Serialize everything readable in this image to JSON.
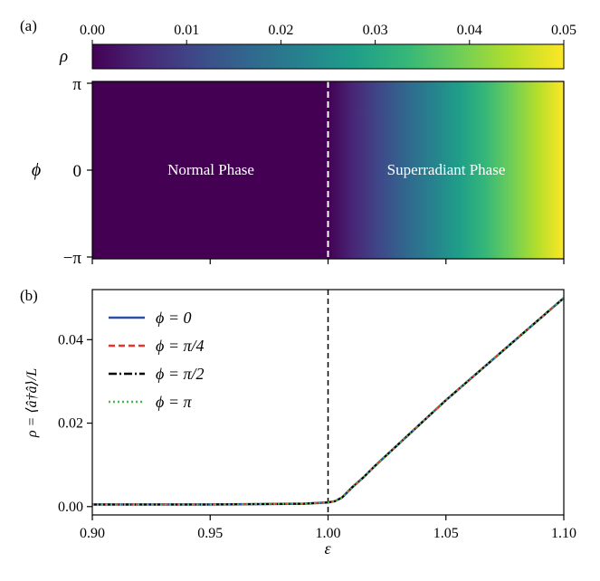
{
  "figure": {
    "panel_a_label": "(a)",
    "panel_b_label": "(b)"
  },
  "chart_data": [
    {
      "type": "heatmap",
      "panel": "(a)",
      "colorbar": {
        "label": "ρ",
        "range": [
          0.0,
          0.05
        ],
        "ticks": [
          "0.00",
          "0.01",
          "0.02",
          "0.03",
          "0.04",
          "0.05"
        ],
        "colormap": "viridis",
        "colors": [
          "#440154",
          "#482878",
          "#3e4a89",
          "#31688e",
          "#26828e",
          "#1f9e89",
          "#35b779",
          "#6ece58",
          "#b5de2b",
          "#fde725"
        ]
      },
      "xlim": [
        0.9,
        1.1
      ],
      "ylabel": "ϕ",
      "yticks": [
        "π",
        "0",
        "−π"
      ],
      "threshold_x": 1.0,
      "annotations": [
        "Normal Phase",
        "Superradiant Phase"
      ],
      "value_model": "rho(epsilon) = 0 for epsilon < 1, then rises linearly to 0.05 at epsilon = 1.1; independent of phi"
    },
    {
      "type": "line",
      "panel": "(b)",
      "xlabel": "ε",
      "ylabel": "ρ = ⟨â†â⟩/L",
      "xlim": [
        0.9,
        1.1
      ],
      "ylim": [
        -0.002,
        0.052
      ],
      "xticks": [
        "0.90",
        "0.95",
        "1.00",
        "1.05",
        "1.10"
      ],
      "yticks": [
        "0.00",
        "0.02",
        "0.04"
      ],
      "threshold_x": 1.0,
      "legend_placement": "top-left",
      "series": [
        {
          "name": "ϕ = 0",
          "color": "#2c4ea3",
          "dash": "solid",
          "x": [
            0.9,
            0.95,
            0.99,
            1.0,
            1.003,
            1.006,
            1.01,
            1.015,
            1.02,
            1.05,
            1.1
          ],
          "y": [
            0.0005,
            0.0005,
            0.0007,
            0.001,
            0.0013,
            0.0022,
            0.0045,
            0.007,
            0.0098,
            0.0255,
            0.05
          ]
        },
        {
          "name": "ϕ = π/4",
          "color": "#e8332b",
          "dash": "dashed",
          "x": [
            0.9,
            0.95,
            0.99,
            1.0,
            1.003,
            1.006,
            1.01,
            1.015,
            1.02,
            1.05,
            1.1
          ],
          "y": [
            0.0005,
            0.0005,
            0.0007,
            0.001,
            0.0013,
            0.0022,
            0.0045,
            0.007,
            0.0098,
            0.0255,
            0.05
          ]
        },
        {
          "name": "ϕ = π/2",
          "color": "#000000",
          "dash": "dashdot",
          "x": [
            0.9,
            0.95,
            0.99,
            1.0,
            1.003,
            1.006,
            1.01,
            1.015,
            1.02,
            1.05,
            1.1
          ],
          "y": [
            0.0005,
            0.0005,
            0.0007,
            0.001,
            0.0013,
            0.0022,
            0.0045,
            0.007,
            0.0098,
            0.0255,
            0.05
          ]
        },
        {
          "name": "ϕ = π",
          "color": "#4cb849",
          "dash": "dotted",
          "x": [
            0.9,
            0.95,
            0.99,
            1.0,
            1.003,
            1.006,
            1.01,
            1.015,
            1.02,
            1.05,
            1.1
          ],
          "y": [
            0.0005,
            0.0005,
            0.0007,
            0.001,
            0.0013,
            0.0022,
            0.0045,
            0.007,
            0.0098,
            0.0255,
            0.05
          ]
        }
      ]
    }
  ]
}
